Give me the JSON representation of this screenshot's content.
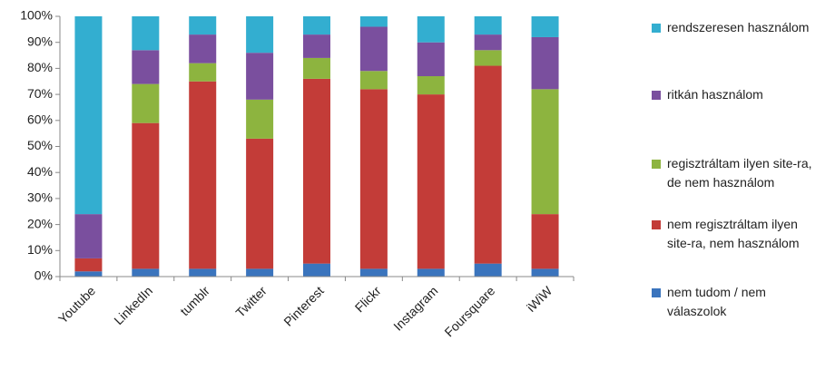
{
  "chart_data": {
    "type": "stacked_bar",
    "categories": [
      "Youtube",
      "LinkedIn",
      "tumblr",
      "Twitter",
      "Pinterest",
      "Flickr",
      "Instagram",
      "Foursquare",
      "iWiW"
    ],
    "series": [
      {
        "name": "nem tudom / nem válaszolok",
        "color": "#3a74bd",
        "values": [
          2,
          3,
          3,
          3,
          5,
          3,
          3,
          5,
          3
        ]
      },
      {
        "name": "nem regisztráltam ilyen site-ra, nem használom",
        "color": "#c33c38",
        "values": [
          5,
          56,
          72,
          50,
          71,
          69,
          67,
          76,
          21
        ]
      },
      {
        "name": "regisztráltam ilyen site-ra, de nem használom",
        "color": "#8db43f",
        "values": [
          0,
          15,
          7,
          15,
          8,
          7,
          7,
          6,
          48
        ]
      },
      {
        "name": "ritkán használom",
        "color": "#7a4f9e",
        "values": [
          17,
          13,
          11,
          18,
          9,
          17,
          13,
          6,
          20
        ]
      },
      {
        "name": "rendszeresen használom",
        "color": "#33aed0",
        "values": [
          76,
          13,
          7,
          14,
          7,
          4,
          10,
          7,
          8
        ]
      }
    ],
    "ylim": [
      0,
      100
    ],
    "yticks": [
      {
        "value": 0,
        "label": "0%"
      },
      {
        "value": 10,
        "label": "10%"
      },
      {
        "value": 20,
        "label": "20%"
      },
      {
        "value": 30,
        "label": "30%"
      },
      {
        "value": 40,
        "label": "40%"
      },
      {
        "value": 50,
        "label": "50%"
      },
      {
        "value": 60,
        "label": "60%"
      },
      {
        "value": 70,
        "label": "70%"
      },
      {
        "value": 80,
        "label": "80%"
      },
      {
        "value": 90,
        "label": "90%"
      },
      {
        "value": 100,
        "label": "100%"
      }
    ],
    "grid": false,
    "legend": "right"
  }
}
